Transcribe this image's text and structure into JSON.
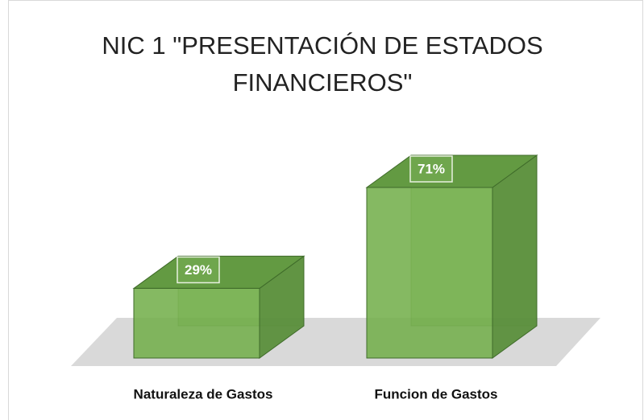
{
  "chart_data": {
    "type": "bar3d",
    "title": "NIC 1 \"PRESENTACIÓN DE ESTADOS FINANCIEROS\"",
    "categories": [
      "Naturaleza de Gastos",
      "Funcion de Gastos"
    ],
    "values": [
      29,
      71
    ],
    "value_labels": [
      "29%",
      "71%"
    ],
    "color": "#70ad47"
  }
}
